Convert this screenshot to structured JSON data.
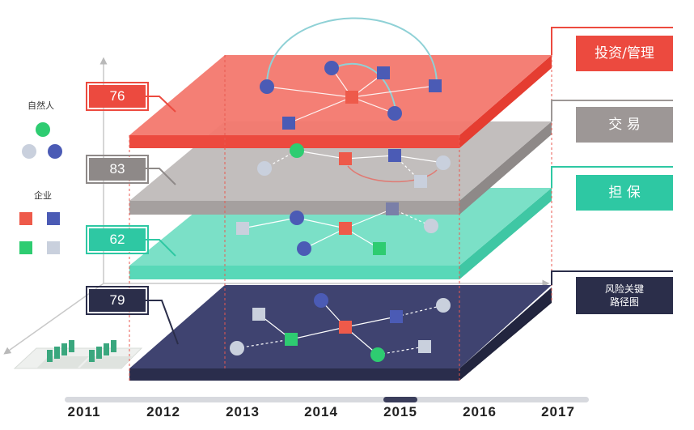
{
  "legend": {
    "person_title": "自然人",
    "company_title": "企业",
    "colors": {
      "green": "#2ecc71",
      "gray": "#c9d0dd",
      "blue": "#4b5bb5",
      "red": "#ee5a4a"
    }
  },
  "layers": [
    {
      "id": "investment",
      "value": "76",
      "label": "投资/管理",
      "color": "#f0574c"
    },
    {
      "id": "trade",
      "value": "83",
      "label": "交 易",
      "color": "#9d9796"
    },
    {
      "id": "guarantee",
      "value": "62",
      "label": "担 保",
      "color": "#2ec8a3"
    },
    {
      "id": "risk",
      "value": "79",
      "label": "风险关键\n路径图",
      "color": "#2b2e4a"
    }
  ],
  "timeline": {
    "years": [
      "2011",
      "2012",
      "2013",
      "2014",
      "2015",
      "2016",
      "2017"
    ],
    "selected": "2015"
  }
}
